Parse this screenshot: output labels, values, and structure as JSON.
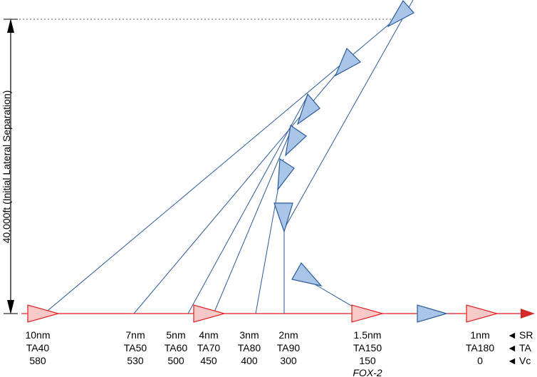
{
  "axis_label": "40,000ft (Initial Lateral Separation)",
  "fox_label": "FOX-2",
  "legend": [
    {
      "arrow": "◄",
      "text": "SR"
    },
    {
      "arrow": "◄",
      "text": "TA"
    },
    {
      "arrow": "◄",
      "text": "Vc"
    }
  ],
  "columns": [
    {
      "sr": "10nm",
      "ta": "TA40",
      "vc": "580"
    },
    {
      "sr": "7nm",
      "ta": "TA50",
      "vc": "530"
    },
    {
      "sr": "5nm",
      "ta": "TA60",
      "vc": "500"
    },
    {
      "sr": "4nm",
      "ta": "TA70",
      "vc": "450"
    },
    {
      "sr": "3nm",
      "ta": "TA80",
      "vc": "400"
    },
    {
      "sr": "2nm",
      "ta": "TA90",
      "vc": "300"
    },
    {
      "sr": "1.5nm",
      "ta": "TA150",
      "vc": "150"
    },
    {
      "sr": "1nm",
      "ta": "TA180",
      "vc": "0"
    }
  ],
  "colors": {
    "friendly_stroke": "#e02020",
    "friendly_fill": "#f9c9c9",
    "bandit_stroke": "#2a5a9a",
    "bandit_fill": "#a9c6e8",
    "sight_line": "#2a5a9a",
    "axis": "#000000",
    "dotted": "#555555"
  }
}
